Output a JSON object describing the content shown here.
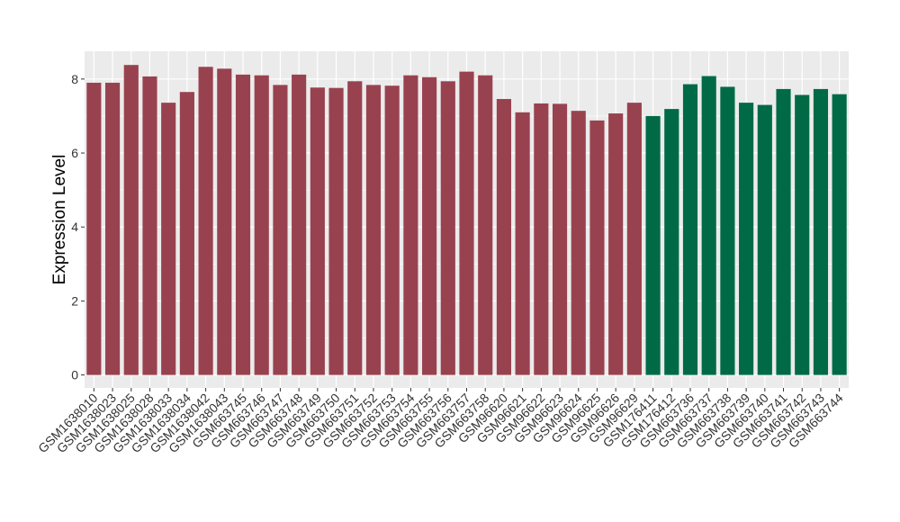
{
  "chart_data": {
    "type": "bar",
    "title": "",
    "xlabel": "",
    "ylabel": "Expression Level",
    "ylim": [
      -0.35,
      8.75
    ],
    "yticks": [
      0,
      2,
      4,
      6,
      8
    ],
    "grid": true,
    "categories": [
      "GSM1638010",
      "GSM1638023",
      "GSM1638025",
      "GSM1638028",
      "GSM1638033",
      "GSM1638034",
      "GSM1638042",
      "GSM1638043",
      "GSM663745",
      "GSM663746",
      "GSM663747",
      "GSM663748",
      "GSM663749",
      "GSM663750",
      "GSM663751",
      "GSM663752",
      "GSM663753",
      "GSM663754",
      "GSM663755",
      "GSM663756",
      "GSM663757",
      "GSM663758",
      "GSM96620",
      "GSM96621",
      "GSM96622",
      "GSM96623",
      "GSM96624",
      "GSM96625",
      "GSM96626",
      "GSM96629",
      "GSM176411",
      "GSM176412",
      "GSM663736",
      "GSM663737",
      "GSM663738",
      "GSM663739",
      "GSM663740",
      "GSM663741",
      "GSM663742",
      "GSM663743",
      "GSM663744"
    ],
    "values": [
      7.9,
      7.9,
      8.38,
      8.07,
      7.36,
      7.65,
      8.33,
      8.28,
      8.12,
      8.1,
      7.84,
      8.12,
      7.77,
      7.76,
      7.94,
      7.84,
      7.82,
      8.1,
      8.05,
      7.94,
      8.2,
      8.1,
      7.46,
      7.1,
      7.34,
      7.33,
      7.14,
      6.88,
      7.07,
      7.36,
      7.0,
      7.19,
      7.86,
      8.08,
      7.79,
      7.36,
      7.3,
      7.73,
      7.57,
      7.73,
      7.59
    ],
    "groups": [
      0,
      0,
      0,
      0,
      0,
      0,
      0,
      0,
      0,
      0,
      0,
      0,
      0,
      0,
      0,
      0,
      0,
      0,
      0,
      0,
      0,
      0,
      0,
      0,
      0,
      0,
      0,
      0,
      0,
      0,
      1,
      1,
      1,
      1,
      1,
      1,
      1,
      1,
      1,
      1,
      1
    ],
    "group_colors": [
      "#99424f",
      "#006a47"
    ],
    "background_color": "#ebebeb",
    "grid_color": "#ffffff"
  }
}
